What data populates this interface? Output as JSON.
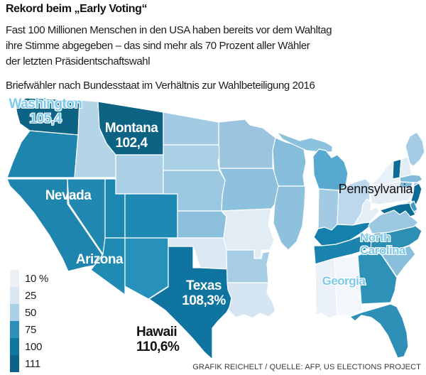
{
  "header": {
    "title": "Rekord beim „Early Voting“",
    "body_lines": [
      "Fast 100 Millionen Menschen in den USA haben bereits vor dem Wahltag",
      "ihre Stimme abgegeben – das sind mehr als 70 Prozent aller Wähler",
      "der letzten Präsidentschaftswahl"
    ],
    "subtitle": "Briefwähler nach Bundesstaat im Verhältnis zur Wahlbeteiligung 2016"
  },
  "legend": {
    "ticks": [
      "10 %",
      "25",
      "50",
      "75",
      "100",
      "111"
    ],
    "colors": [
      "#edf1f6",
      "#d9e7f2",
      "#abd1e7",
      "#2e90ba",
      "#0f76a0",
      "#0c6387"
    ]
  },
  "footer": {
    "credit": "GRAFIK REICHELT / QUELLE: AFP, US ELECTIONS PROJECT"
  },
  "map": {
    "labels": [
      {
        "id": "washington",
        "lines": [
          "Washington",
          "105,4"
        ],
        "style": "blue"
      },
      {
        "id": "montana",
        "lines": [
          "Montana",
          "102,4"
        ],
        "style": "white"
      },
      {
        "id": "nevada",
        "lines": [
          "Nevada"
        ],
        "style": "white"
      },
      {
        "id": "arizona",
        "lines": [
          "Arizona"
        ],
        "style": "white"
      },
      {
        "id": "texas",
        "lines": [
          "Texas",
          "108,3%"
        ],
        "style": "white"
      },
      {
        "id": "hawaii",
        "lines": [
          "Hawaii",
          "110,6%"
        ],
        "style": "black"
      },
      {
        "id": "pennsylvania",
        "lines": [
          "Pennsylvania"
        ],
        "style": "plain"
      },
      {
        "id": "north-carolina",
        "lines": [
          "North",
          "Carolina"
        ],
        "style": "blue-small"
      },
      {
        "id": "georgia",
        "lines": [
          "Georgia"
        ],
        "style": "blue-small"
      }
    ],
    "states": [
      {
        "id": "WA",
        "name": "Washington",
        "fill": "#0d6384"
      },
      {
        "id": "OR",
        "name": "Oregon",
        "fill": "#1e86ae"
      },
      {
        "id": "CA",
        "name": "California",
        "fill": "#1d85ae"
      },
      {
        "id": "NV",
        "name": "Nevada",
        "fill": "#2189b1"
      },
      {
        "id": "ID",
        "name": "Idaho",
        "fill": "#b4d4e8"
      },
      {
        "id": "MT",
        "name": "Montana",
        "fill": "#0d6384"
      },
      {
        "id": "WY",
        "name": "Wyoming",
        "fill": "#abd0e6"
      },
      {
        "id": "UT",
        "name": "Utah",
        "fill": "#1c87b0"
      },
      {
        "id": "CO",
        "name": "Colorado",
        "fill": "#1e8ab3"
      },
      {
        "id": "AZ",
        "name": "Arizona",
        "fill": "#1f8ab2"
      },
      {
        "id": "NM",
        "name": "New Mexico",
        "fill": "#2791b9"
      },
      {
        "id": "ND",
        "name": "North Dakota",
        "fill": "#a2cae3"
      },
      {
        "id": "SD",
        "name": "South Dakota",
        "fill": "#aad0e6"
      },
      {
        "id": "NE",
        "name": "Nebraska",
        "fill": "#9cc7e0"
      },
      {
        "id": "KS",
        "name": "Kansas",
        "fill": "#8cc0dc"
      },
      {
        "id": "OK",
        "name": "Oklahoma",
        "fill": "#dce9f3"
      },
      {
        "id": "TX",
        "name": "Texas",
        "fill": "#0f75a0"
      },
      {
        "id": "MN",
        "name": "Minnesota",
        "fill": "#9bc5df"
      },
      {
        "id": "IA",
        "name": "Iowa",
        "fill": "#8ec1dd"
      },
      {
        "id": "MO",
        "name": "Missouri",
        "fill": "#e1ecf5"
      },
      {
        "id": "AR",
        "name": "Arkansas",
        "fill": "#a6cde4"
      },
      {
        "id": "LA",
        "name": "Louisiana",
        "fill": "#d5e5f1"
      },
      {
        "id": "WI",
        "name": "Wisconsin",
        "fill": "#86bdda"
      },
      {
        "id": "IL",
        "name": "Illinois",
        "fill": "#8ec1dd"
      },
      {
        "id": "MIU",
        "name": "Michigan Upper Peninsula",
        "fill": "#8cc2dd"
      },
      {
        "id": "MI",
        "name": "Michigan",
        "fill": "#58a9cf"
      },
      {
        "id": "IN",
        "name": "Indiana",
        "fill": "#a2cae3"
      },
      {
        "id": "OH",
        "name": "Ohio",
        "fill": "#bdd8ec"
      },
      {
        "id": "KY",
        "name": "Kentucky",
        "fill": "#1480ab"
      },
      {
        "id": "TN",
        "name": "Tennessee",
        "fill": "#1a84ae"
      },
      {
        "id": "MS",
        "name": "Mississippi",
        "fill": "#eaf1f8"
      },
      {
        "id": "AL",
        "name": "Alabama",
        "fill": "#f3f7fb"
      },
      {
        "id": "GA",
        "name": "Georgia",
        "fill": "#2e91b8"
      },
      {
        "id": "FL",
        "name": "Florida",
        "fill": "#2e90b7"
      },
      {
        "id": "SC",
        "name": "South Carolina",
        "fill": "#89bfdb"
      },
      {
        "id": "NC",
        "name": "North Carolina",
        "fill": "#2e8fb5"
      },
      {
        "id": "VA",
        "name": "Virginia",
        "fill": "#9cc7e0"
      },
      {
        "id": "WV",
        "name": "West Virginia",
        "fill": "#e6eff6"
      },
      {
        "id": "PA",
        "name": "Pennsylvania",
        "fill": "#e4edf5"
      },
      {
        "id": "NY",
        "name": "New York",
        "fill": "#e9f1f8"
      },
      {
        "id": "LI",
        "name": "Long Island",
        "fill": "#e9f1f8"
      },
      {
        "id": "VT",
        "name": "Vermont",
        "fill": "#0b6c96"
      },
      {
        "id": "NH",
        "name": "New Hampshire",
        "fill": "#e3edf5"
      },
      {
        "id": "ME",
        "name": "Maine",
        "fill": "#a4cce4"
      },
      {
        "id": "MA",
        "name": "Massachusetts",
        "fill": "#7fbad9"
      },
      {
        "id": "CT",
        "name": "Connecticut",
        "fill": "#7fbad9"
      },
      {
        "id": "RI",
        "name": "Rhode Island",
        "fill": "#9cc8e1"
      },
      {
        "id": "NJ",
        "name": "New Jersey",
        "fill": "#0b6c96"
      },
      {
        "id": "DE",
        "name": "Delaware",
        "fill": "#3d9ac2"
      },
      {
        "id": "MD",
        "name": "Maryland",
        "fill": "#0b6c96"
      }
    ]
  },
  "chart_data": {
    "type": "choropleth",
    "title": "Rekord beim „Early Voting“",
    "unit": "Briefwähler in % der Wahlbeteiligung 2016",
    "legend_position": "bottom-left",
    "scale_ticks": [
      10,
      25,
      50,
      75,
      100,
      111
    ],
    "color_scale": [
      "#edf1f6",
      "#d9e7f2",
      "#abd1e7",
      "#2e90ba",
      "#0f76a0",
      "#0c6387"
    ],
    "labeled_values": [
      {
        "state": "Washington",
        "value": 105.4
      },
      {
        "state": "Montana",
        "value": 102.4
      },
      {
        "state": "Texas",
        "value": 108.3
      },
      {
        "state": "Hawaii",
        "value": 110.6
      }
    ],
    "callout_states_without_values": [
      "Nevada",
      "Arizona",
      "Pennsylvania",
      "North Carolina",
      "Georgia"
    ],
    "state_color_groups_estimated": {
      "100-111": [
        "Washington",
        "Montana",
        "Texas",
        "Vermont",
        "New Jersey",
        "Maryland"
      ],
      "75-100": [
        "Oregon",
        "California",
        "Nevada",
        "Utah",
        "Colorado",
        "Arizona",
        "New Mexico",
        "Kentucky",
        "Tennessee",
        "North Carolina",
        "Georgia",
        "Florida",
        "Delaware",
        "Michigan"
      ],
      "50-75": [
        "Idaho",
        "Wyoming",
        "North Dakota",
        "South Dakota",
        "Nebraska",
        "Kansas",
        "Minnesota",
        "Iowa",
        "Wisconsin",
        "Illinois",
        "Indiana",
        "Ohio",
        "Arkansas",
        "Virginia",
        "South Carolina",
        "Maine",
        "Massachusetts",
        "Connecticut",
        "Rhode Island"
      ],
      "25-50": [
        "Oklahoma",
        "Louisiana"
      ],
      "10-25": [
        "Missouri",
        "Mississippi",
        "Alabama",
        "West Virginia",
        "Pennsylvania",
        "New York",
        "New Hampshire"
      ]
    }
  }
}
